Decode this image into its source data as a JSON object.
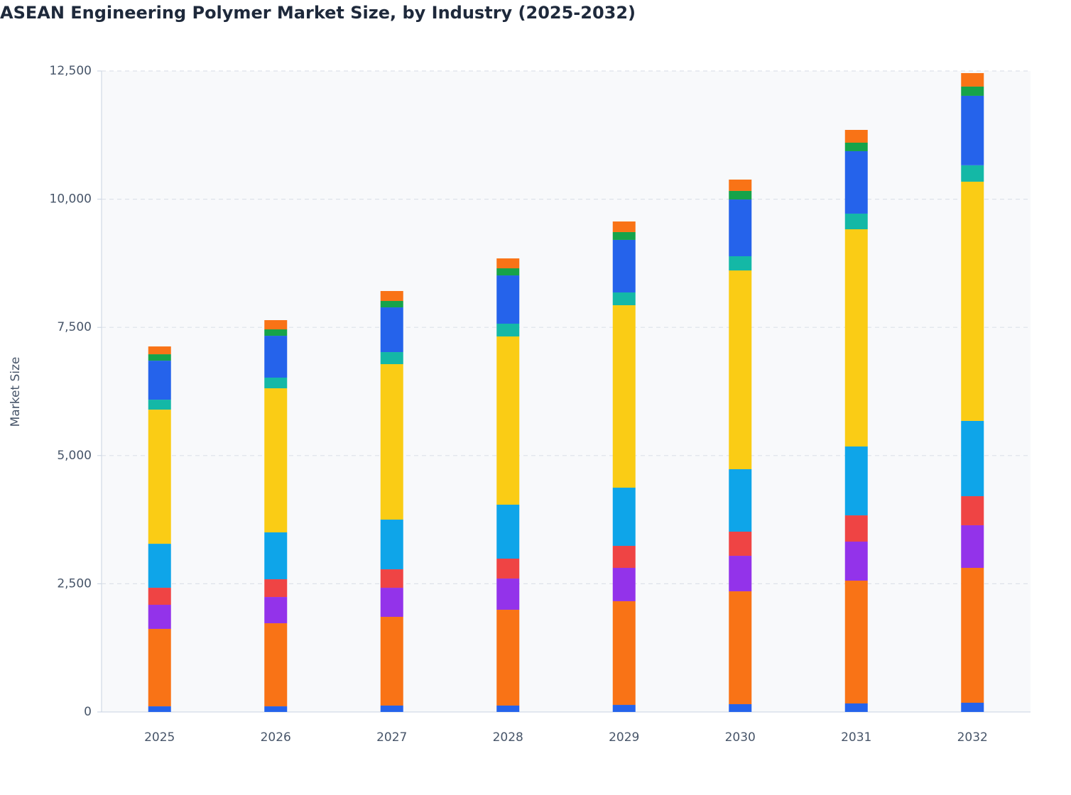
{
  "chart_data": {
    "type": "stacked-bar",
    "title": "ASEAN Engineering Polymer Market Size, by Industry (2025-2032)",
    "y_label": "Market Size",
    "categories": [
      "2025",
      "2026",
      "2027",
      "2028",
      "2029",
      "2030",
      "2031",
      "2032"
    ],
    "series": [
      {
        "color": "#2563eb",
        "values": [
          110,
          110,
          125,
          125,
          138,
          152,
          166,
          180
        ]
      },
      {
        "color": "#f97316",
        "values": [
          1510,
          1620,
          1730,
          1868,
          2022,
          2201,
          2395,
          2630
        ]
      },
      {
        "color": "#9333ea",
        "values": [
          470,
          512,
          567,
          609,
          650,
          692,
          761,
          831
        ]
      },
      {
        "color": "#ef4444",
        "values": [
          332,
          346,
          360,
          388,
          429,
          471,
          512,
          567
        ]
      },
      {
        "color": "#0ea5e9",
        "values": [
          858,
          914,
          969,
          1052,
          1135,
          1218,
          1343,
          1468
        ]
      },
      {
        "color": "#facc15",
        "values": [
          2616,
          2810,
          3032,
          3281,
          3558,
          3876,
          4236,
          4665
        ]
      },
      {
        "color": "#14b8a6",
        "values": [
          194,
          208,
          235,
          249,
          249,
          277,
          305,
          320
        ]
      },
      {
        "color": "#2563eb",
        "values": [
          761,
          816,
          872,
          941,
          1025,
          1107,
          1218,
          1355
        ]
      },
      {
        "color": "#16a34a",
        "values": [
          125,
          125,
          125,
          139,
          152,
          167,
          166,
          180
        ]
      },
      {
        "color": "#f97316",
        "values": [
          152,
          180,
          194,
          193,
          207,
          221,
          249,
          263
        ]
      }
    ],
    "ylim": [
      0,
      12500
    ],
    "yticks": [
      0,
      {
        "value": 2500,
        "label": "2,500"
      },
      {
        "value": 5000,
        "label": "5,000"
      },
      {
        "value": 7500,
        "label": "7,500"
      },
      {
        "value": 10000,
        "label": "10,000"
      },
      {
        "value": 12500,
        "label": "12,500"
      }
    ],
    "grid": true
  }
}
